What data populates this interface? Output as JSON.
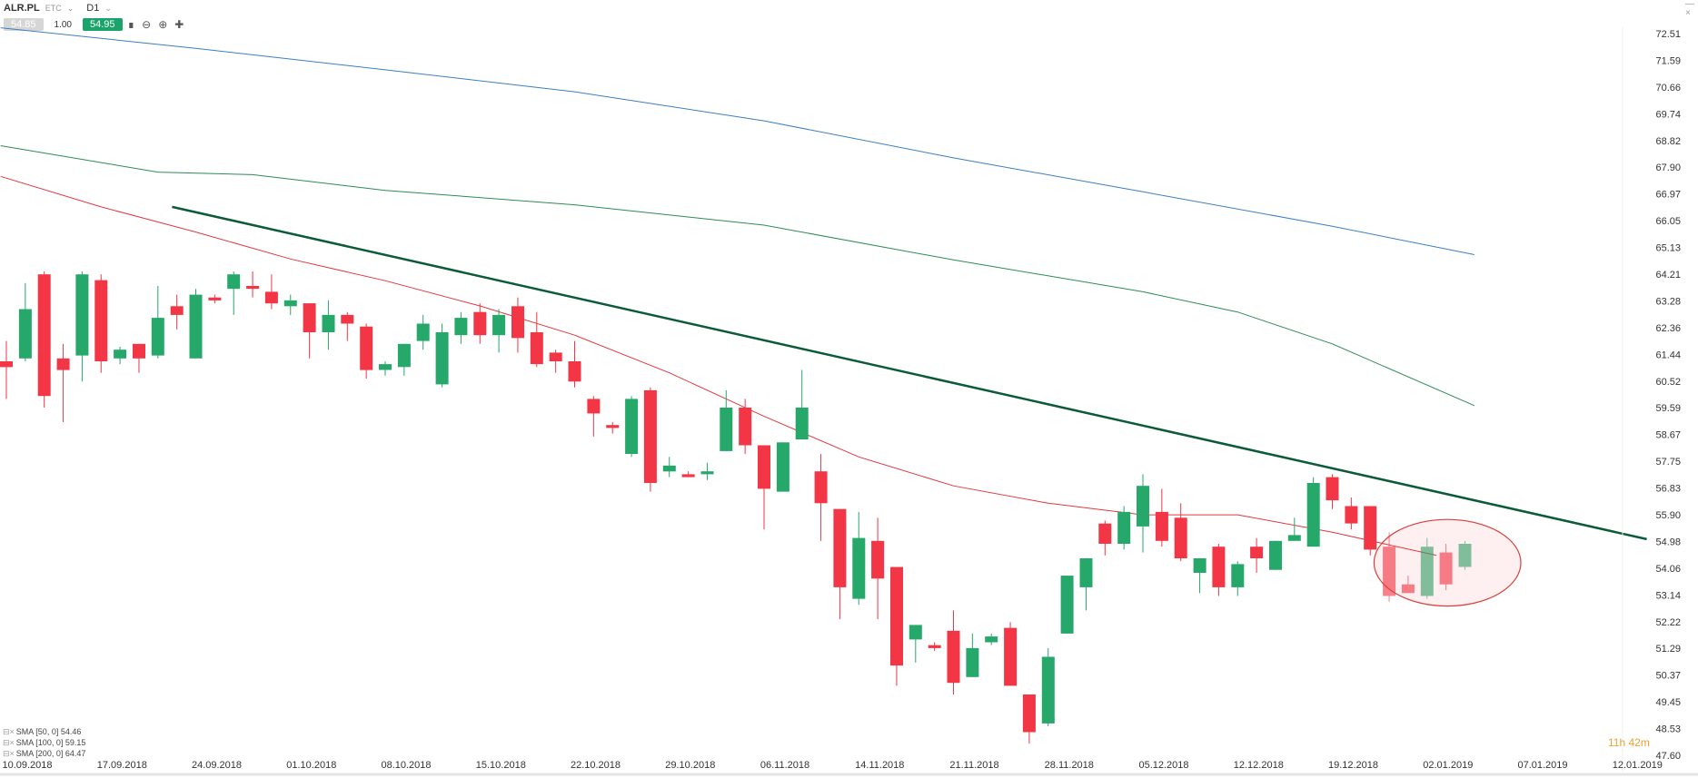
{
  "toolbar": {
    "symbol": "ALR.PL",
    "symbol_sub": "ETC",
    "timeframe": "D1",
    "bid": "54.85",
    "quantity": "1.00",
    "ask": "54.95"
  },
  "legend": [
    {
      "label": "SMA [50, 0] 54.46",
      "color": "#e0393e"
    },
    {
      "label": "SMA [100, 0] 59.15",
      "color": "#2e8b57"
    },
    {
      "label": "SMA [200, 0] 64.47",
      "color": "#3a7fc1"
    }
  ],
  "timer": "11h 42m",
  "colors": {
    "up": "#26a86b",
    "down": "#f23645",
    "sma50": "#e0393e",
    "sma100": "#2e8b57",
    "sma200": "#3a7fc1",
    "trendline": "#0b5a3a",
    "ellipse": "#d9403a"
  },
  "chart_data": {
    "type": "candlestick",
    "title": "",
    "y_ticks": [
      "72.51",
      "71.59",
      "70.66",
      "69.74",
      "68.82",
      "67.90",
      "66.97",
      "66.05",
      "65.13",
      "64.21",
      "63.28",
      "62.36",
      "61.44",
      "60.52",
      "59.59",
      "58.67",
      "57.75",
      "56.83",
      "55.90",
      "54.98",
      "54.06",
      "53.14",
      "52.22",
      "51.29",
      "50.37",
      "49.45",
      "48.53",
      "47.60"
    ],
    "x_ticks": [
      {
        "date": "10.09.2018",
        "index": 0
      },
      {
        "date": "17.09.2018",
        "index": 5
      },
      {
        "date": "24.09.2018",
        "index": 10
      },
      {
        "date": "01.10.2018",
        "index": 15
      },
      {
        "date": "08.10.2018",
        "index": 20
      },
      {
        "date": "15.10.2018",
        "index": 25
      },
      {
        "date": "22.10.2018",
        "index": 30
      },
      {
        "date": "29.10.2018",
        "index": 35
      },
      {
        "date": "06.11.2018",
        "index": 40
      },
      {
        "date": "14.11.2018",
        "index": 45
      },
      {
        "date": "21.11.2018",
        "index": 50
      },
      {
        "date": "28.11.2018",
        "index": 55
      },
      {
        "date": "05.12.2018",
        "index": 60
      },
      {
        "date": "12.12.2018",
        "index": 65
      },
      {
        "date": "19.12.2018",
        "index": 70
      },
      {
        "date": "02.01.2019",
        "index": 75
      },
      {
        "date": "07.01.2019",
        "index": 80
      },
      {
        "date": "12.01.2019",
        "index": 85
      }
    ],
    "ylim": [
      47.6,
      72.51
    ],
    "candles": [
      {
        "o": 61.2,
        "h": 61.9,
        "l": 59.9,
        "c": 61.0
      },
      {
        "o": 61.3,
        "h": 63.9,
        "l": 61.2,
        "c": 63.0
      },
      {
        "o": 64.2,
        "h": 64.3,
        "l": 59.6,
        "c": 60.0
      },
      {
        "o": 61.3,
        "h": 61.8,
        "l": 59.1,
        "c": 60.9
      },
      {
        "o": 61.4,
        "h": 64.3,
        "l": 60.5,
        "c": 64.2
      },
      {
        "o": 64.0,
        "h": 64.2,
        "l": 60.8,
        "c": 61.2
      },
      {
        "o": 61.3,
        "h": 61.7,
        "l": 61.1,
        "c": 61.6
      },
      {
        "o": 61.8,
        "h": 61.8,
        "l": 60.8,
        "c": 61.3
      },
      {
        "o": 61.4,
        "h": 63.8,
        "l": 61.3,
        "c": 62.7
      },
      {
        "o": 63.1,
        "h": 63.5,
        "l": 62.3,
        "c": 62.8
      },
      {
        "o": 61.3,
        "h": 63.7,
        "l": 61.3,
        "c": 63.5
      },
      {
        "o": 63.4,
        "h": 63.5,
        "l": 63.2,
        "c": 63.3
      },
      {
        "o": 63.7,
        "h": 64.3,
        "l": 62.8,
        "c": 64.2
      },
      {
        "o": 63.8,
        "h": 64.3,
        "l": 63.4,
        "c": 63.7
      },
      {
        "o": 63.6,
        "h": 64.2,
        "l": 63.0,
        "c": 63.2
      },
      {
        "o": 63.1,
        "h": 63.5,
        "l": 62.8,
        "c": 63.3
      },
      {
        "o": 63.2,
        "h": 63.2,
        "l": 61.3,
        "c": 62.2
      },
      {
        "o": 62.2,
        "h": 63.3,
        "l": 61.6,
        "c": 62.8
      },
      {
        "o": 62.8,
        "h": 62.9,
        "l": 61.9,
        "c": 62.5
      },
      {
        "o": 62.4,
        "h": 62.5,
        "l": 60.6,
        "c": 60.9
      },
      {
        "o": 60.9,
        "h": 61.2,
        "l": 60.7,
        "c": 61.1
      },
      {
        "o": 61.0,
        "h": 61.8,
        "l": 60.7,
        "c": 61.8
      },
      {
        "o": 61.9,
        "h": 62.8,
        "l": 61.6,
        "c": 62.5
      },
      {
        "o": 60.4,
        "h": 62.5,
        "l": 60.3,
        "c": 62.2
      },
      {
        "o": 62.1,
        "h": 62.9,
        "l": 61.8,
        "c": 62.7
      },
      {
        "o": 62.9,
        "h": 63.2,
        "l": 61.8,
        "c": 62.1
      },
      {
        "o": 62.1,
        "h": 63.0,
        "l": 61.5,
        "c": 62.8
      },
      {
        "o": 63.1,
        "h": 63.4,
        "l": 61.5,
        "c": 62.0
      },
      {
        "o": 62.2,
        "h": 62.9,
        "l": 61.0,
        "c": 61.1
      },
      {
        "o": 61.5,
        "h": 61.6,
        "l": 60.8,
        "c": 61.2
      },
      {
        "o": 61.2,
        "h": 61.9,
        "l": 60.3,
        "c": 60.5
      },
      {
        "o": 59.9,
        "h": 60.0,
        "l": 58.6,
        "c": 59.4
      },
      {
        "o": 59.0,
        "h": 59.1,
        "l": 58.7,
        "c": 58.9
      },
      {
        "o": 58.0,
        "h": 60.0,
        "l": 57.9,
        "c": 59.9
      },
      {
        "o": 60.2,
        "h": 60.3,
        "l": 56.7,
        "c": 57.0
      },
      {
        "o": 57.4,
        "h": 57.9,
        "l": 57.2,
        "c": 57.6
      },
      {
        "o": 57.3,
        "h": 57.4,
        "l": 57.2,
        "c": 57.2
      },
      {
        "o": 57.3,
        "h": 57.7,
        "l": 57.1,
        "c": 57.4
      },
      {
        "o": 58.1,
        "h": 60.2,
        "l": 58.1,
        "c": 59.6
      },
      {
        "o": 59.6,
        "h": 59.9,
        "l": 58.0,
        "c": 58.3
      },
      {
        "o": 58.3,
        "h": 58.3,
        "l": 55.4,
        "c": 56.8
      },
      {
        "o": 56.7,
        "h": 58.4,
        "l": 56.7,
        "c": 58.4
      },
      {
        "o": 58.5,
        "h": 60.9,
        "l": 58.5,
        "c": 59.6
      },
      {
        "o": 57.4,
        "h": 58.0,
        "l": 55.0,
        "c": 56.3
      },
      {
        "o": 56.1,
        "h": 56.1,
        "l": 52.3,
        "c": 53.4
      },
      {
        "o": 53.0,
        "h": 56.0,
        "l": 52.8,
        "c": 55.1
      },
      {
        "o": 55.0,
        "h": 55.8,
        "l": 52.3,
        "c": 53.7
      },
      {
        "o": 54.1,
        "h": 54.1,
        "l": 50.0,
        "c": 50.7
      },
      {
        "o": 51.6,
        "h": 52.0,
        "l": 50.8,
        "c": 52.1
      },
      {
        "o": 51.4,
        "h": 51.5,
        "l": 51.2,
        "c": 51.3
      },
      {
        "o": 51.9,
        "h": 52.6,
        "l": 49.7,
        "c": 50.1
      },
      {
        "o": 50.3,
        "h": 51.8,
        "l": 50.3,
        "c": 51.3
      },
      {
        "o": 51.5,
        "h": 51.8,
        "l": 51.4,
        "c": 51.7
      },
      {
        "o": 52.0,
        "h": 52.2,
        "l": 50.0,
        "c": 50.0
      },
      {
        "o": 49.7,
        "h": 49.7,
        "l": 48.0,
        "c": 48.4
      },
      {
        "o": 48.7,
        "h": 51.3,
        "l": 48.6,
        "c": 51.0
      },
      {
        "o": 51.8,
        "h": 53.8,
        "l": 51.8,
        "c": 53.8
      },
      {
        "o": 53.4,
        "h": 54.4,
        "l": 52.6,
        "c": 54.4
      },
      {
        "o": 55.6,
        "h": 55.7,
        "l": 54.5,
        "c": 54.9
      },
      {
        "o": 54.9,
        "h": 56.2,
        "l": 54.7,
        "c": 56.0
      },
      {
        "o": 55.5,
        "h": 57.3,
        "l": 54.6,
        "c": 56.9
      },
      {
        "o": 56.0,
        "h": 56.8,
        "l": 54.8,
        "c": 55.0
      },
      {
        "o": 55.8,
        "h": 56.3,
        "l": 54.3,
        "c": 54.4
      },
      {
        "o": 53.9,
        "h": 54.4,
        "l": 53.2,
        "c": 54.4
      },
      {
        "o": 54.8,
        "h": 54.9,
        "l": 53.1,
        "c": 53.4
      },
      {
        "o": 53.4,
        "h": 54.3,
        "l": 53.1,
        "c": 54.2
      },
      {
        "o": 54.8,
        "h": 55.1,
        "l": 53.9,
        "c": 54.4
      },
      {
        "o": 54.0,
        "h": 55.0,
        "l": 54.0,
        "c": 55.0
      },
      {
        "o": 55.0,
        "h": 55.8,
        "l": 55.0,
        "c": 55.2
      },
      {
        "o": 54.8,
        "h": 57.2,
        "l": 54.8,
        "c": 57.0
      },
      {
        "o": 57.2,
        "h": 57.3,
        "l": 56.1,
        "c": 56.4
      },
      {
        "o": 56.2,
        "h": 56.5,
        "l": 55.4,
        "c": 55.6
      },
      {
        "o": 56.2,
        "h": 56.2,
        "l": 54.5,
        "c": 54.7
      },
      {
        "o": 54.8,
        "h": 55.3,
        "l": 52.9,
        "c": 53.1
      },
      {
        "o": 53.5,
        "h": 53.8,
        "l": 53.2,
        "c": 53.2
      },
      {
        "o": 53.1,
        "h": 55.1,
        "l": 53.0,
        "c": 54.8
      },
      {
        "o": 54.6,
        "h": 54.9,
        "l": 53.3,
        "c": 53.5
      },
      {
        "o": 54.1,
        "h": 55.0,
        "l": 54.0,
        "c": 54.9
      }
    ],
    "sma200": [
      [
        -0.3,
        72.71
      ],
      [
        10,
        72.0
      ],
      [
        20,
        71.26
      ],
      [
        30,
        70.5
      ],
      [
        40,
        69.5
      ],
      [
        50,
        68.22
      ],
      [
        60,
        67.05
      ],
      [
        70,
        65.86
      ],
      [
        77.5,
        64.88
      ]
    ],
    "sma100": [
      [
        -0.3,
        68.64
      ],
      [
        8,
        67.73
      ],
      [
        13,
        67.64
      ],
      [
        20,
        67.1
      ],
      [
        30,
        66.6
      ],
      [
        40,
        65.9
      ],
      [
        50,
        64.7
      ],
      [
        60,
        63.6
      ],
      [
        65,
        62.9
      ],
      [
        70,
        61.8
      ],
      [
        77.5,
        59.67
      ]
    ],
    "sma50": [
      [
        -0.3,
        67.58
      ],
      [
        5,
        66.53
      ],
      [
        10,
        65.66
      ],
      [
        15,
        64.73
      ],
      [
        20,
        63.98
      ],
      [
        25,
        63.11
      ],
      [
        30,
        62.1
      ],
      [
        35,
        60.8
      ],
      [
        40,
        59.3
      ],
      [
        45,
        57.9
      ],
      [
        50,
        56.9
      ],
      [
        55,
        56.3
      ],
      [
        60,
        55.9
      ],
      [
        65,
        55.9
      ],
      [
        70,
        55.3
      ],
      [
        75.5,
        54.5
      ]
    ],
    "trendline": [
      [
        8.75,
        66.53
      ],
      [
        86.6,
        55.06
      ]
    ],
    "highlight_ellipse": {
      "x_from": 72.2,
      "x_to": 79.95,
      "y_from": 52.75,
      "y_to": 55.74
    }
  }
}
